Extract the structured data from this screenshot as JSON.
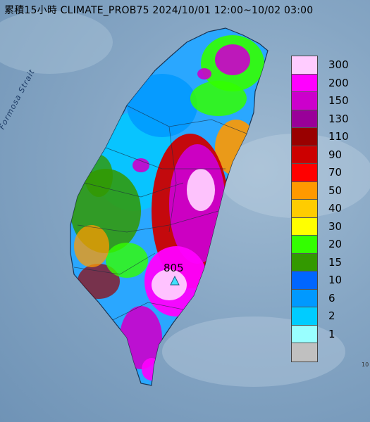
{
  "title": "累積15小時 CLIMATE_PROB75 2024/10/01 12:00~10/02 03:00",
  "sea_label": "Formosa Strait",
  "peak": {
    "value": "805"
  },
  "corner_mark": "10",
  "legend": [
    {
      "label": "300",
      "color": "#ffccff"
    },
    {
      "label": "200",
      "color": "#ff00ff"
    },
    {
      "label": "150",
      "color": "#cc00cc"
    },
    {
      "label": "130",
      "color": "#990099"
    },
    {
      "label": "110",
      "color": "#990000"
    },
    {
      "label": "90",
      "color": "#cc0000"
    },
    {
      "label": "70",
      "color": "#ff0000"
    },
    {
      "label": "50",
      "color": "#ff9900"
    },
    {
      "label": "40",
      "color": "#ffcc00"
    },
    {
      "label": "30",
      "color": "#ffff00"
    },
    {
      "label": "20",
      "color": "#33ff00"
    },
    {
      "label": "15",
      "color": "#339900"
    },
    {
      "label": "10",
      "color": "#0066ff"
    },
    {
      "label": "6",
      "color": "#0099ff"
    },
    {
      "label": "2",
      "color": "#00ccff"
    },
    {
      "label": "1",
      "color": "#99ffff"
    },
    {
      "label": "",
      "color": "#c0c0c0"
    }
  ]
}
